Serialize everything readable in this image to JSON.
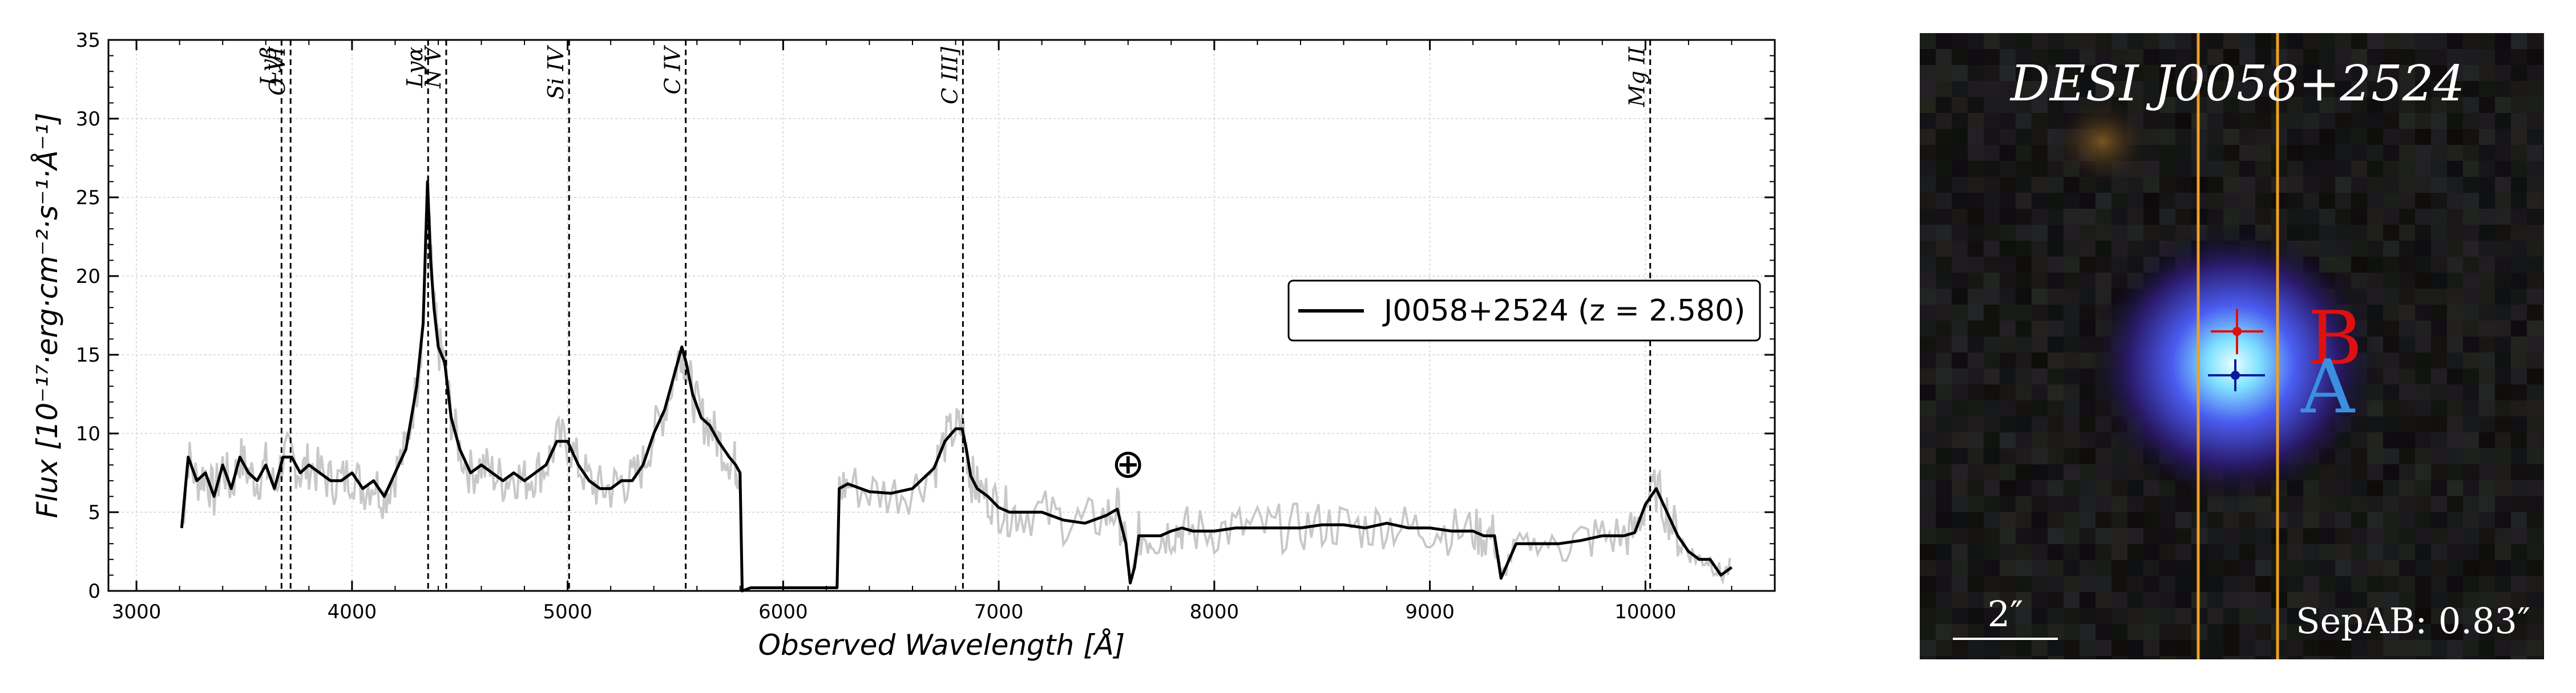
{
  "chart_data": {
    "type": "line",
    "xlabel": "Observed Wavelength [Å]",
    "ylabel": "Flux [10⁻¹⁷·erg·cm⁻²·s⁻¹·Å⁻¹]",
    "xlim": [
      2870,
      10600
    ],
    "ylim": [
      0,
      35
    ],
    "x_ticks": [
      3000,
      4000,
      5000,
      6000,
      7000,
      8000,
      9000,
      10000
    ],
    "y_ticks": [
      0,
      5,
      10,
      15,
      20,
      25,
      30,
      35
    ],
    "grid": true,
    "legend_position": "right",
    "series": [
      {
        "name": "J0058+2524 (z = 2.580)",
        "color": "#000000",
        "x": [
          3210,
          3240,
          3280,
          3320,
          3360,
          3400,
          3440,
          3480,
          3520,
          3560,
          3600,
          3640,
          3680,
          3720,
          3760,
          3800,
          3850,
          3900,
          3950,
          4000,
          4050,
          4100,
          4150,
          4200,
          4250,
          4300,
          4330,
          4350,
          4365,
          4380,
          4400,
          4430,
          4460,
          4500,
          4550,
          4600,
          4650,
          4700,
          4750,
          4800,
          4850,
          4900,
          4950,
          5000,
          5050,
          5100,
          5150,
          5200,
          5250,
          5300,
          5350,
          5400,
          5450,
          5500,
          5530,
          5550,
          5580,
          5620,
          5660,
          5700,
          5750,
          5780,
          5800,
          5810,
          5850,
          5900,
          6000,
          6100,
          6200,
          6250,
          6260,
          6300,
          6400,
          6500,
          6600,
          6700,
          6750,
          6800,
          6830,
          6850,
          6870,
          6900,
          6950,
          7000,
          7050,
          7100,
          7200,
          7300,
          7400,
          7500,
          7550,
          7590,
          7610,
          7630,
          7650,
          7700,
          7750,
          7800,
          7850,
          7900,
          8000,
          8100,
          8200,
          8300,
          8400,
          8500,
          8600,
          8700,
          8800,
          8900,
          9000,
          9100,
          9200,
          9250,
          9300,
          9330,
          9400,
          9500,
          9600,
          9700,
          9800,
          9900,
          9950,
          10000,
          10050,
          10100,
          10150,
          10200,
          10250,
          10300,
          10350,
          10400
        ],
        "y": [
          4,
          8.5,
          7,
          7.5,
          6,
          8,
          6.5,
          8.5,
          7.5,
          7,
          8,
          6.5,
          8.5,
          8.5,
          7.5,
          8,
          7.5,
          7,
          7,
          7.5,
          6.5,
          7,
          6,
          7.5,
          9,
          13,
          17,
          26,
          21,
          18,
          15.5,
          14.5,
          11,
          9,
          7.5,
          8,
          7.5,
          7,
          7.5,
          7,
          7.5,
          8,
          9.5,
          9.5,
          8,
          7,
          6.5,
          6.5,
          7,
          7,
          8,
          10,
          11.5,
          14,
          15.5,
          14.5,
          12.5,
          11,
          10.5,
          9.5,
          8.5,
          8,
          7.5,
          0,
          0.2,
          0.2,
          0.2,
          0.2,
          0.2,
          0.2,
          6.5,
          6.8,
          6.3,
          6.2,
          6.5,
          7.8,
          9.5,
          10.3,
          10.3,
          9,
          7.3,
          6.5,
          6,
          5.3,
          5,
          5,
          5,
          4.5,
          4.3,
          4.8,
          5.2,
          3,
          0.5,
          1.5,
          3.5,
          3.5,
          3.5,
          3.8,
          4,
          3.8,
          3.8,
          4,
          4,
          4,
          4,
          4.2,
          4.2,
          4,
          4.3,
          4,
          4,
          3.8,
          3.8,
          3.5,
          3.5,
          0.8,
          3,
          3,
          3,
          3.2,
          3.5,
          3.5,
          3.7,
          5.5,
          6.5,
          5,
          3.5,
          2.5,
          2,
          2,
          1,
          1.5
        ]
      }
    ],
    "emission_lines": [
      {
        "label": "Lyβ",
        "x": 3673
      },
      {
        "label": "O VI",
        "x": 3715
      },
      {
        "label": "Lyα",
        "x": 4353
      },
      {
        "label": "N V",
        "x": 4437
      },
      {
        "label": "Si IV",
        "x": 5007
      },
      {
        "label": "C IV",
        "x": 5548
      },
      {
        "label": "C III]",
        "x": 6834
      },
      {
        "label": "Mg II",
        "x": 10022
      }
    ],
    "telluric_marker": {
      "symbol": "⊕",
      "x": 7600,
      "y": 8
    }
  },
  "cutout": {
    "title": "DESI J0058+2524",
    "scale_label": "2″",
    "separation_label": "SepAB: 0.83″",
    "components": [
      {
        "label": "B",
        "color": "#e01010"
      },
      {
        "label": "A",
        "color": "#3a8fe0"
      }
    ],
    "slit_color": "#f0a020"
  }
}
